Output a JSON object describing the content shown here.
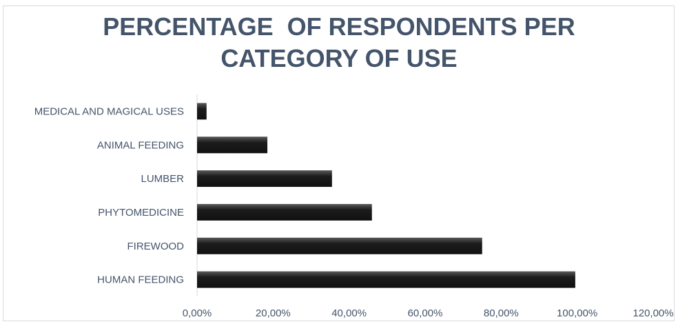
{
  "chart_data": {
    "type": "bar",
    "orientation": "horizontal",
    "title_lines": [
      "PERCENTAGE  OF RESPONDENTS PER",
      "CATEGORY OF USE"
    ],
    "categories": [
      "MEDICAL AND MAGICAL USES",
      "ANIMAL FEEDING",
      "LUMBER",
      "PHYTOMEDICINE",
      "FIREWOOD",
      "HUMAN FEEDING"
    ],
    "values": [
      2.5,
      18.5,
      35.5,
      46.0,
      75.0,
      99.5
    ],
    "xlim": [
      0,
      120
    ],
    "x_ticks": [
      "0,00%",
      "20,00%",
      "40,00%",
      "60,00%",
      "80,00%",
      "100,00%",
      "120,00%"
    ],
    "grid": false,
    "legend": "none",
    "bar_color": "#1f1f1f"
  }
}
